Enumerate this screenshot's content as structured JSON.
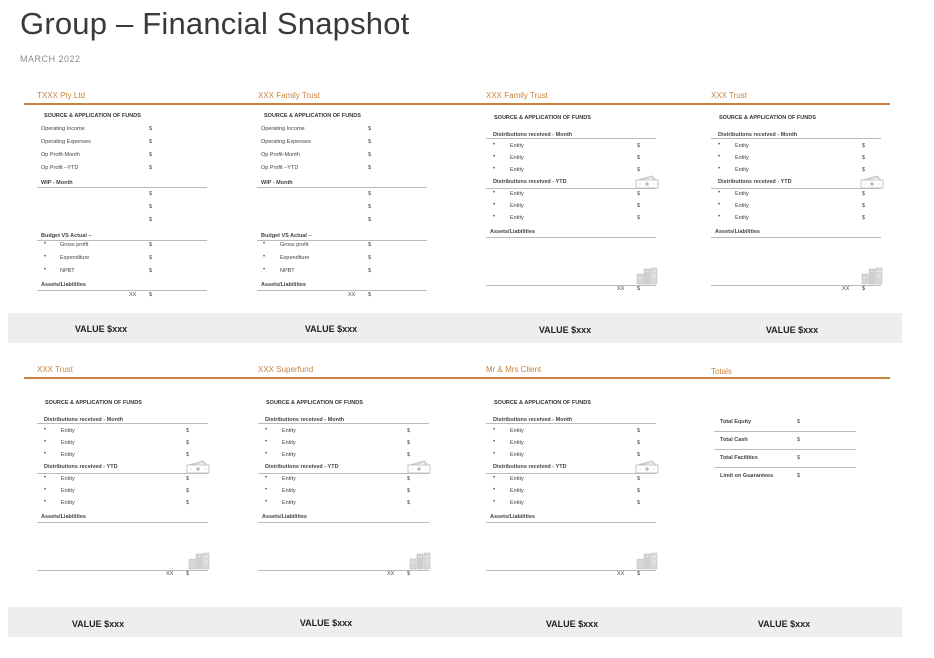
{
  "page": {
    "title": "Group – Financial Snapshot",
    "date": "MARCH   2022"
  },
  "colors": {
    "accent": "#c8843c",
    "band": "#eeeeee"
  },
  "labels": {
    "source": "SOURCE & APPLICATION OF FUNDS",
    "operating_income": "Operating Income",
    "operating_expenses": "Operating Expenses",
    "op_profit_month": "Op Profit-Month",
    "op_profit_ytd": "Op Profit –YTD",
    "wip_month": "WIP - Month",
    "budget_vs_actual": "Budget  VS Actual –",
    "gross_profit": "Gross profit",
    "expenditure": "Expenditure",
    "npbt": "NPBT",
    "assets_liabilities": "Assets/Liabilities",
    "dist_month": "Distributions received - Month",
    "dist_ytd": "Distributions received - YTD",
    "entity": "Entity",
    "dollar": "$",
    "xx": "XX",
    "total_equity": "Total Equity",
    "total_cash": "Total Cash",
    "total_facilities": "Total Facilities",
    "limit_guarantees": "Limit on Guarantees"
  },
  "entities_top": [
    {
      "name": "TXXX  Pty Ltd",
      "value": "VALUE $xxx"
    },
    {
      "name": "XXX  Family Trust",
      "value": "VALUE $xxx"
    },
    {
      "name": "XXX  Family Trust",
      "value": "VALUE $xxx"
    },
    {
      "name": "XXX Trust",
      "value": "VALUE $xxx"
    }
  ],
  "entities_bottom": [
    {
      "name": "XXX Trust",
      "value": "VALUE $xxx"
    },
    {
      "name": "XXX Superfund",
      "value": "VALUE $xxx"
    },
    {
      "name": "Mr & Mrs Client",
      "value": "VALUE $xxx"
    },
    {
      "name": "Totals",
      "value": "VALUE $xxx"
    }
  ],
  "icons": [
    "cash-icon",
    "building-icon"
  ]
}
